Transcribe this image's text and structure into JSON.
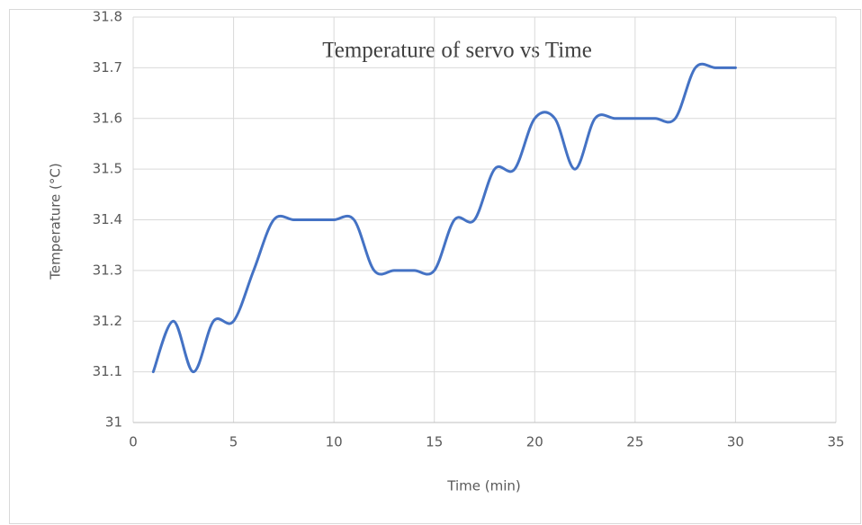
{
  "chart_data": {
    "type": "line",
    "title": "Temperature of servo vs Time",
    "x_label": "Time (min)",
    "y_label": "Temperature (°C)",
    "x": [
      1,
      2,
      3,
      4,
      5,
      6,
      7,
      8,
      9,
      10,
      11,
      12,
      13,
      14,
      15,
      16,
      17,
      18,
      19,
      20,
      21,
      22,
      23,
      24,
      25,
      26,
      27,
      28,
      29,
      30
    ],
    "series": [
      {
        "name": "Temperature",
        "color": "#4472c4",
        "values": [
          31.1,
          31.2,
          31.1,
          31.2,
          31.2,
          31.3,
          31.4,
          31.4,
          31.4,
          31.4,
          31.4,
          31.3,
          31.3,
          31.3,
          31.3,
          31.4,
          31.4,
          31.5,
          31.5,
          31.6,
          31.6,
          31.5,
          31.6,
          31.6,
          31.6,
          31.6,
          31.6,
          31.7,
          31.7,
          31.7
        ]
      }
    ],
    "xlim": [
      0,
      35
    ],
    "xticks": [
      0,
      5,
      10,
      15,
      20,
      25,
      30,
      35
    ],
    "ylim": [
      31,
      31.8
    ],
    "yticks": [
      31,
      31.1,
      31.2,
      31.3,
      31.4,
      31.5,
      31.6,
      31.7,
      31.8
    ],
    "grid": true,
    "smooth": true
  }
}
